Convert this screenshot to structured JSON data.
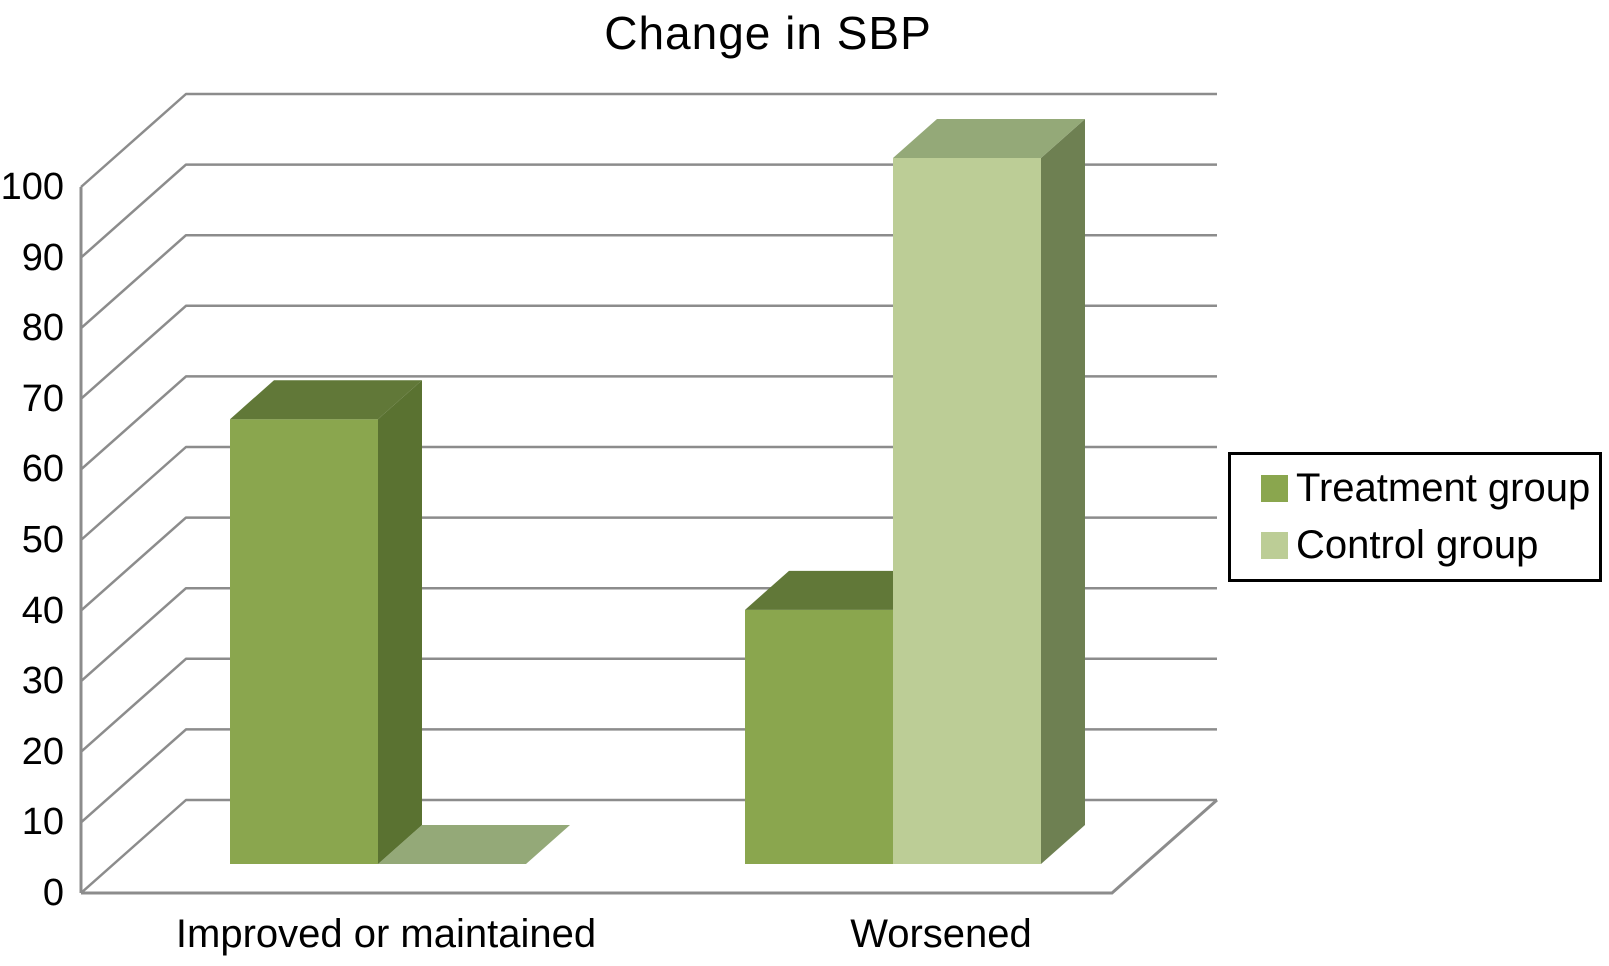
{
  "chart_data": {
    "type": "bar",
    "projection": "3d",
    "title": "Change in SBP",
    "categories": [
      "Improved or maintained",
      "Worsened"
    ],
    "series": [
      {
        "name": "Treatment group",
        "values": [
          63,
          36
        ],
        "color": "#8AA64E",
        "color_top": "#617838",
        "color_side": "#5A7231"
      },
      {
        "name": "Control group",
        "values": [
          0,
          100
        ],
        "color": "#BCCD96",
        "color_top": "#94A978",
        "color_side": "#6E8052"
      }
    ],
    "ylim": [
      0,
      100
    ],
    "yticks": [
      0,
      10,
      20,
      30,
      40,
      50,
      60,
      70,
      80,
      90,
      100
    ],
    "grid": true,
    "gridline_color": "#8C8C8C",
    "axis_color": "#8C8C8C",
    "text_color": "#000000",
    "background_color": "#FFFFFF",
    "legend_position": "right",
    "legend_border_color": "#000000"
  }
}
